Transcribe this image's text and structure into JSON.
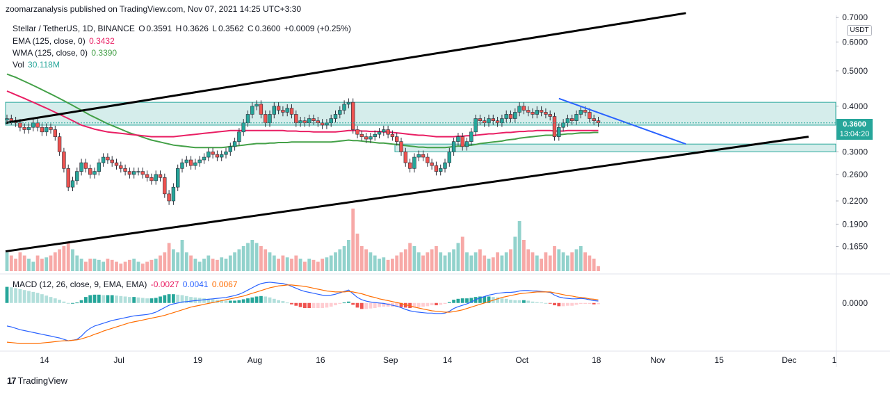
{
  "header": {
    "publish_text": "zoomarzanalysis published on TradingView.com, Nov 07, 2021 14:25 UTC+3:30"
  },
  "legend": {
    "main": {
      "symbol": "Stellar / TetherUS, 1D, BINANCE",
      "o_label": "O",
      "o": "0.3591",
      "h_label": "H",
      "h": "0.3626",
      "l_label": "L",
      "l": "0.3562",
      "c_label": "C",
      "c": "0.3600",
      "change": "+0.0009 (+0.25%)"
    },
    "ema": {
      "label": "EMA (125, close, 0)",
      "value": "0.3432"
    },
    "wma": {
      "label": "WMA (125, close, 0)",
      "value": "0.3390"
    },
    "vol": {
      "label": "Vol",
      "value": "30.118M"
    },
    "macd": {
      "label": "MACD (12, 26, close, 9, EMA, EMA)",
      "hist": "-0.0027",
      "macd": "0.0041",
      "signal": "0.0067"
    }
  },
  "price_axis": {
    "currency": "USDT",
    "last_price": "0.3600",
    "countdown": "13:04:20"
  },
  "branding": {
    "logo_mark": "17",
    "logo_text": "TradingView"
  },
  "colors": {
    "up": "#26a69a",
    "down": "#ef5350",
    "ema": "#e91e63",
    "wma": "#43a047",
    "macd": "#2962ff",
    "signal": "#ff6d00",
    "zone": "#b2dfdb",
    "channel": "#000000",
    "wedge": "#2962ff"
  },
  "chart_data": {
    "type": "candlestick",
    "symbol": "Stellar / TetherUS",
    "interval": "1D",
    "exchange": "BINANCE",
    "y_scale": "log",
    "ylim": [
      0.14,
      0.71
    ],
    "y_ticks": [
      "0.1650",
      "0.1900",
      "0.2200",
      "0.2600",
      "0.3000",
      "0.4000",
      "0.5000",
      "0.6000",
      "0.7000"
    ],
    "x_ticks": [
      {
        "label": "14",
        "day": 0
      },
      {
        "label": "Jul",
        "day": 17
      },
      {
        "label": "19",
        "day": 35
      },
      {
        "label": "Aug",
        "day": 48
      },
      {
        "label": "16",
        "day": 63
      },
      {
        "label": "Sep",
        "day": 79
      },
      {
        "label": "14",
        "day": 92
      },
      {
        "label": "Oct",
        "day": 109
      },
      {
        "label": "18",
        "day": 126
      },
      {
        "label": "Nov",
        "day": 140
      },
      {
        "label": "15",
        "day": 154
      },
      {
        "label": "Dec",
        "day": 170
      },
      {
        "label": "1",
        "day": 183
      }
    ],
    "close": [
      0.37,
      0.365,
      0.36,
      0.35,
      0.345,
      0.35,
      0.36,
      0.35,
      0.34,
      0.35,
      0.345,
      0.33,
      0.3,
      0.27,
      0.24,
      0.25,
      0.265,
      0.28,
      0.27,
      0.26,
      0.265,
      0.28,
      0.29,
      0.285,
      0.28,
      0.275,
      0.27,
      0.265,
      0.26,
      0.265,
      0.265,
      0.26,
      0.255,
      0.25,
      0.26,
      0.255,
      0.23,
      0.22,
      0.24,
      0.27,
      0.28,
      0.285,
      0.275,
      0.28,
      0.285,
      0.29,
      0.3,
      0.295,
      0.29,
      0.295,
      0.3,
      0.31,
      0.32,
      0.34,
      0.36,
      0.38,
      0.4,
      0.405,
      0.38,
      0.36,
      0.38,
      0.4,
      0.39,
      0.385,
      0.395,
      0.38,
      0.36,
      0.365,
      0.36,
      0.37,
      0.365,
      0.36,
      0.355,
      0.36,
      0.37,
      0.38,
      0.39,
      0.405,
      0.41,
      0.345,
      0.335,
      0.33,
      0.325,
      0.33,
      0.335,
      0.34,
      0.345,
      0.335,
      0.33,
      0.32,
      0.3,
      0.28,
      0.27,
      0.29,
      0.295,
      0.29,
      0.28,
      0.275,
      0.265,
      0.27,
      0.28,
      0.3,
      0.32,
      0.33,
      0.31,
      0.32,
      0.34,
      0.37,
      0.365,
      0.36,
      0.37,
      0.365,
      0.36,
      0.37,
      0.38,
      0.37,
      0.385,
      0.4,
      0.39,
      0.385,
      0.38,
      0.39,
      0.385,
      0.38,
      0.375,
      0.33,
      0.35,
      0.36,
      0.37,
      0.365,
      0.38,
      0.39,
      0.385,
      0.37,
      0.365,
      0.36
    ],
    "ema_125": [
      0.44,
      0.435,
      0.43,
      0.425,
      0.42,
      0.415,
      0.41,
      0.405,
      0.4,
      0.395,
      0.39,
      0.385,
      0.38,
      0.375,
      0.37,
      0.365,
      0.36,
      0.355,
      0.352,
      0.349,
      0.346,
      0.344,
      0.342,
      0.34,
      0.339,
      0.338,
      0.337,
      0.336,
      0.335,
      0.334,
      0.333,
      0.332,
      0.331,
      0.33,
      0.33,
      0.33,
      0.33,
      0.33,
      0.33,
      0.331,
      0.332,
      0.333,
      0.334,
      0.335,
      0.336,
      0.337,
      0.338,
      0.339,
      0.34,
      0.341,
      0.342,
      0.343,
      0.343,
      0.343,
      0.343,
      0.343,
      0.343,
      0.343,
      0.343,
      0.343,
      0.343,
      0.343,
      0.343,
      0.343,
      0.342,
      0.342,
      0.342,
      0.341,
      0.341,
      0.341,
      0.34,
      0.34,
      0.34,
      0.34,
      0.34,
      0.34,
      0.341,
      0.342,
      0.343,
      0.343,
      0.343,
      0.342,
      0.342,
      0.341,
      0.341,
      0.341,
      0.34,
      0.34,
      0.339,
      0.338,
      0.337,
      0.336,
      0.335,
      0.334,
      0.333,
      0.333,
      0.332,
      0.331,
      0.33,
      0.33,
      0.33,
      0.33,
      0.33,
      0.331,
      0.331,
      0.332,
      0.332,
      0.333,
      0.334,
      0.335,
      0.336,
      0.336,
      0.337,
      0.338,
      0.339,
      0.339,
      0.34,
      0.341,
      0.341,
      0.342,
      0.342,
      0.343,
      0.343,
      0.343,
      0.343,
      0.342,
      0.342,
      0.342,
      0.343,
      0.343,
      0.343,
      0.343,
      0.343,
      0.343,
      0.343,
      0.3432
    ],
    "wma_125": [
      0.49,
      0.485,
      0.48,
      0.474,
      0.468,
      0.462,
      0.456,
      0.45,
      0.444,
      0.438,
      0.432,
      0.426,
      0.42,
      0.414,
      0.408,
      0.402,
      0.396,
      0.39,
      0.384,
      0.378,
      0.373,
      0.368,
      0.363,
      0.358,
      0.354,
      0.35,
      0.346,
      0.342,
      0.338,
      0.335,
      0.332,
      0.329,
      0.326,
      0.323,
      0.321,
      0.319,
      0.317,
      0.315,
      0.313,
      0.312,
      0.311,
      0.31,
      0.309,
      0.308,
      0.308,
      0.308,
      0.308,
      0.308,
      0.308,
      0.308,
      0.309,
      0.31,
      0.311,
      0.312,
      0.313,
      0.314,
      0.315,
      0.316,
      0.316,
      0.316,
      0.317,
      0.317,
      0.318,
      0.318,
      0.318,
      0.319,
      0.319,
      0.319,
      0.319,
      0.319,
      0.319,
      0.319,
      0.319,
      0.319,
      0.319,
      0.32,
      0.321,
      0.322,
      0.323,
      0.322,
      0.322,
      0.321,
      0.32,
      0.319,
      0.318,
      0.317,
      0.317,
      0.316,
      0.315,
      0.314,
      0.313,
      0.312,
      0.311,
      0.31,
      0.309,
      0.309,
      0.308,
      0.308,
      0.308,
      0.308,
      0.308,
      0.309,
      0.31,
      0.311,
      0.311,
      0.312,
      0.313,
      0.314,
      0.316,
      0.317,
      0.318,
      0.319,
      0.32,
      0.321,
      0.323,
      0.324,
      0.325,
      0.327,
      0.328,
      0.329,
      0.33,
      0.331,
      0.332,
      0.333,
      0.333,
      0.333,
      0.334,
      0.335,
      0.336,
      0.336,
      0.337,
      0.338,
      0.338,
      0.338,
      0.339,
      0.339
    ],
    "volume_rel": [
      0.3,
      0.25,
      0.2,
      0.3,
      0.25,
      0.2,
      0.15,
      0.25,
      0.2,
      0.22,
      0.25,
      0.3,
      0.35,
      0.4,
      0.45,
      0.35,
      0.25,
      0.2,
      0.15,
      0.2,
      0.2,
      0.18,
      0.15,
      0.2,
      0.18,
      0.15,
      0.12,
      0.15,
      0.18,
      0.2,
      0.15,
      0.12,
      0.15,
      0.18,
      0.2,
      0.25,
      0.3,
      0.45,
      0.35,
      0.3,
      0.5,
      0.3,
      0.25,
      0.2,
      0.15,
      0.2,
      0.25,
      0.2,
      0.18,
      0.22,
      0.2,
      0.25,
      0.3,
      0.35,
      0.4,
      0.45,
      0.5,
      0.45,
      0.4,
      0.35,
      0.3,
      0.25,
      0.2,
      0.25,
      0.22,
      0.2,
      0.25,
      0.2,
      0.15,
      0.2,
      0.18,
      0.15,
      0.2,
      0.22,
      0.25,
      0.3,
      0.35,
      0.4,
      0.5,
      1.0,
      0.6,
      0.4,
      0.35,
      0.3,
      0.25,
      0.2,
      0.22,
      0.18,
      0.2,
      0.25,
      0.3,
      0.35,
      0.45,
      0.4,
      0.3,
      0.25,
      0.3,
      0.35,
      0.4,
      0.3,
      0.25,
      0.3,
      0.35,
      0.45,
      0.55,
      0.3,
      0.25,
      0.3,
      0.35,
      0.25,
      0.2,
      0.22,
      0.3,
      0.25,
      0.3,
      0.35,
      0.55,
      0.8,
      0.5,
      0.35,
      0.3,
      0.25,
      0.2,
      0.3,
      0.25,
      0.4,
      0.35,
      0.3,
      0.25,
      0.3,
      0.35,
      0.4,
      0.3,
      0.25,
      0.2,
      0.08
    ],
    "macd_line": [
      -0.05,
      -0.052,
      -0.055,
      -0.058,
      -0.06,
      -0.062,
      -0.064,
      -0.066,
      -0.068,
      -0.07,
      -0.072,
      -0.074,
      -0.076,
      -0.079,
      -0.082,
      -0.081,
      -0.079,
      -0.072,
      -0.062,
      -0.055,
      -0.05,
      -0.047,
      -0.044,
      -0.041,
      -0.038,
      -0.036,
      -0.034,
      -0.032,
      -0.03,
      -0.028,
      -0.027,
      -0.026,
      -0.025,
      -0.023,
      -0.02,
      -0.015,
      -0.01,
      -0.005,
      -0.002,
      0.0,
      0.002,
      0.003,
      0.004,
      0.005,
      0.006,
      0.007,
      0.008,
      0.009,
      0.01,
      0.011,
      0.012,
      0.014,
      0.016,
      0.019,
      0.023,
      0.028,
      0.033,
      0.038,
      0.042,
      0.044,
      0.045,
      0.044,
      0.043,
      0.042,
      0.04,
      0.036,
      0.032,
      0.028,
      0.025,
      0.023,
      0.021,
      0.019,
      0.017,
      0.016,
      0.017,
      0.019,
      0.022,
      0.025,
      0.028,
      0.02,
      0.012,
      0.007,
      0.004,
      0.002,
      0.001,
      0.0,
      -0.001,
      -0.003,
      -0.005,
      -0.007,
      -0.01,
      -0.014,
      -0.017,
      -0.019,
      -0.02,
      -0.021,
      -0.022,
      -0.022,
      -0.023,
      -0.023,
      -0.022,
      -0.018,
      -0.012,
      -0.008,
      -0.005,
      -0.002,
      0.002,
      0.007,
      0.011,
      0.014,
      0.017,
      0.019,
      0.021,
      0.022,
      0.023,
      0.023,
      0.024,
      0.026,
      0.027,
      0.027,
      0.026,
      0.026,
      0.025,
      0.024,
      0.023,
      0.017,
      0.013,
      0.011,
      0.01,
      0.009,
      0.009,
      0.01,
      0.009,
      0.007,
      0.005,
      0.0041
    ],
    "signal_line": [
      -0.085,
      -0.086,
      -0.087,
      -0.088,
      -0.088,
      -0.088,
      -0.088,
      -0.088,
      -0.087,
      -0.086,
      -0.085,
      -0.084,
      -0.083,
      -0.082,
      -0.082,
      -0.081,
      -0.08,
      -0.078,
      -0.075,
      -0.072,
      -0.068,
      -0.065,
      -0.061,
      -0.058,
      -0.055,
      -0.052,
      -0.049,
      -0.046,
      -0.043,
      -0.041,
      -0.039,
      -0.037,
      -0.035,
      -0.033,
      -0.031,
      -0.029,
      -0.027,
      -0.024,
      -0.021,
      -0.018,
      -0.015,
      -0.012,
      -0.009,
      -0.007,
      -0.005,
      -0.003,
      -0.001,
      0.001,
      0.003,
      0.005,
      0.007,
      0.009,
      0.011,
      0.013,
      0.015,
      0.018,
      0.021,
      0.024,
      0.027,
      0.03,
      0.033,
      0.035,
      0.037,
      0.038,
      0.039,
      0.039,
      0.038,
      0.037,
      0.036,
      0.034,
      0.032,
      0.03,
      0.028,
      0.026,
      0.025,
      0.024,
      0.024,
      0.024,
      0.025,
      0.024,
      0.022,
      0.02,
      0.017,
      0.014,
      0.012,
      0.009,
      0.007,
      0.005,
      0.003,
      0.001,
      -0.001,
      -0.004,
      -0.006,
      -0.009,
      -0.011,
      -0.013,
      -0.015,
      -0.017,
      -0.018,
      -0.019,
      -0.02,
      -0.02,
      -0.019,
      -0.017,
      -0.015,
      -0.012,
      -0.009,
      -0.006,
      -0.003,
      0.0,
      0.003,
      0.006,
      0.009,
      0.012,
      0.014,
      0.016,
      0.018,
      0.02,
      0.021,
      0.022,
      0.023,
      0.024,
      0.024,
      0.024,
      0.024,
      0.022,
      0.02,
      0.018,
      0.016,
      0.015,
      0.013,
      0.012,
      0.011,
      0.009,
      0.008,
      0.0067
    ],
    "macd_ylim": [
      -0.1,
      0.06
    ],
    "macd_ticks": [
      "0.0000"
    ],
    "zones": [
      {
        "name": "resistance",
        "from": 0.355,
        "to": 0.41,
        "start_day": 0,
        "end_day": 183
      },
      {
        "name": "support",
        "from": 0.3,
        "to": 0.315,
        "start_day": 80,
        "end_day": 183
      }
    ],
    "trendlines": [
      {
        "name": "channel-upper",
        "color": "#000000",
        "from": [
          0,
          0.36
        ],
        "to": [
          155,
          0.72
        ]
      },
      {
        "name": "channel-lower",
        "color": "#000000",
        "from": [
          0,
          0.16
        ],
        "to": [
          183,
          0.33
        ]
      },
      {
        "name": "wedge",
        "color": "#2962ff",
        "from": [
          126,
          0.42
        ],
        "to": [
          155,
          0.315
        ]
      }
    ],
    "last_price": 0.36
  }
}
